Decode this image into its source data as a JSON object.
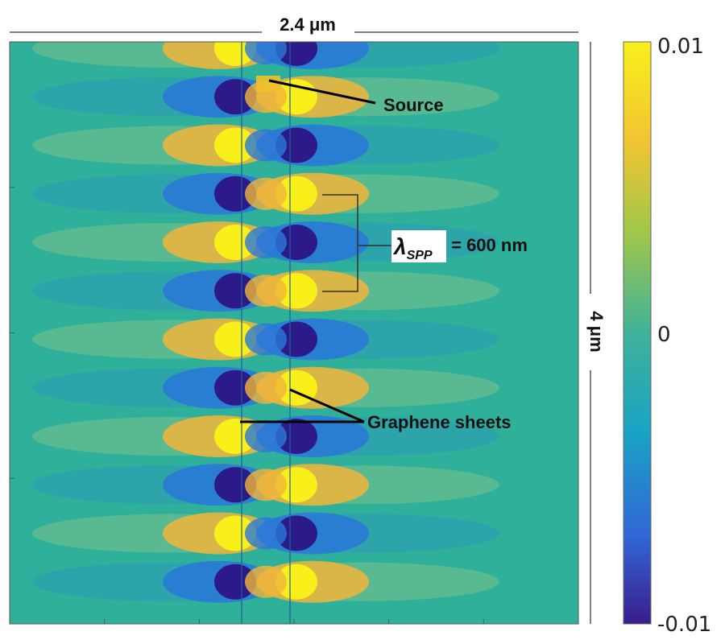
{
  "width_label": "2.4 μm",
  "height_label": "4 μm",
  "colorbar": {
    "max_label": "0.01",
    "mid_label": "0",
    "min_label": "-0.01",
    "colors": [
      "#3b1c8c",
      "#3166d6",
      "#1aa3c4",
      "#3fb29a",
      "#9fc74a",
      "#f2c433",
      "#f9f01a"
    ]
  },
  "annotations": {
    "source": "Source",
    "lambda_symbol": "λ",
    "lambda_subscript": "SPP",
    "lambda_value": " = 600 nm",
    "graphene": "Graphene sheets"
  },
  "field_colors": {
    "background": "#2fb09a",
    "positive": "#f9f01a",
    "positive_mid": "#f0b53a",
    "negative": "#2b1a87",
    "negative_mid": "#2a78d8",
    "light_positive": "#7cc38a",
    "light_negative": "#2a9ab8"
  }
}
